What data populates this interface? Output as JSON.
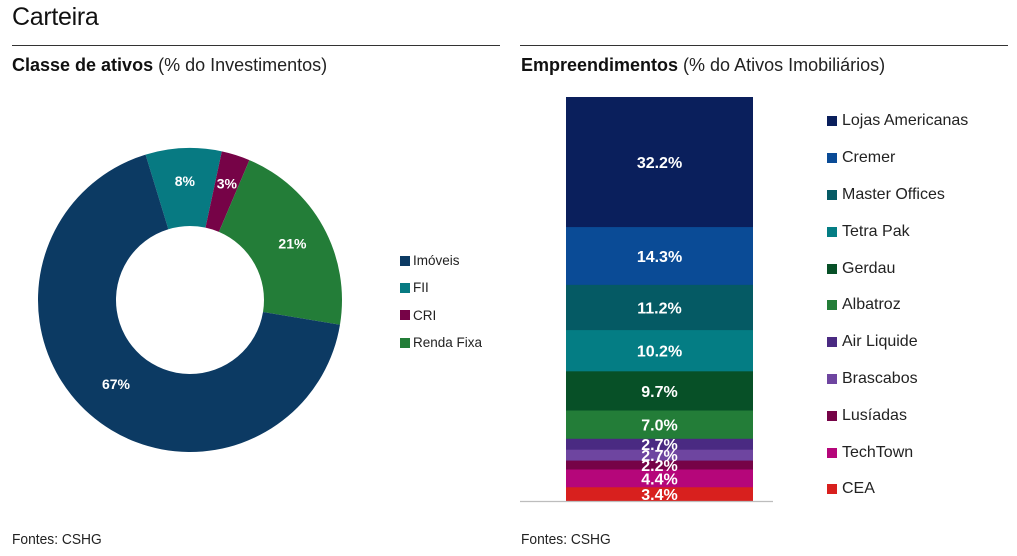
{
  "page": {
    "title": "Carteira"
  },
  "left_panel": {
    "title_bold": "Classe de ativos",
    "title_rest": " (% do Investimentos)",
    "source": "Fontes: CSHG"
  },
  "right_panel": {
    "title_bold": "Empreendimentos",
    "title_rest": " (% do Ativos Imobiliários)",
    "source": "Fontes: CSHG"
  },
  "chart_data": [
    {
      "type": "pie",
      "subtype": "donut",
      "title": "Classe de ativos (% do Investimentos)",
      "categories": [
        "Imóveis",
        "FII",
        "CRI",
        "Renda Fixa"
      ],
      "values": [
        67,
        8,
        3,
        21
      ],
      "labels": [
        "67%",
        "8%",
        "3%",
        "21%"
      ],
      "colors": [
        "#0c3a63",
        "#077a82",
        "#760347",
        "#237d38"
      ],
      "legend": "right",
      "start_angle_deg": -17,
      "draw_order": [
        "FII",
        "CRI",
        "Renda Fixa",
        "Imóveis"
      ]
    },
    {
      "type": "bar",
      "subtype": "stacked-100",
      "title": "Empreendimentos (% do Ativos Imobiliários)",
      "categories": [
        "Lojas Americanas",
        "Cremer",
        "Master Offices",
        "Tetra Pak",
        "Gerdau",
        "Albatroz",
        "Air Liquide",
        "Brascabos",
        "Lusíadas",
        "TechTown",
        "CEA"
      ],
      "values": [
        32.2,
        14.3,
        11.2,
        10.2,
        9.7,
        7.0,
        2.7,
        2.7,
        2.2,
        4.4,
        3.4
      ],
      "labels": [
        "32.2%",
        "14.3%",
        "11.2%",
        "10.2%",
        "9.7%",
        "7.0%",
        "2.7%",
        "2.7%",
        "2.2%",
        "4.4%",
        "3.4%"
      ],
      "colors": [
        "#0a1f5c",
        "#0a4b96",
        "#055a64",
        "#047d84",
        "#075027",
        "#237d38",
        "#4a2a82",
        "#6e45a0",
        "#760347",
        "#b5067a",
        "#d8201e"
      ],
      "legend": "right",
      "ylim": [
        0,
        100
      ]
    }
  ]
}
